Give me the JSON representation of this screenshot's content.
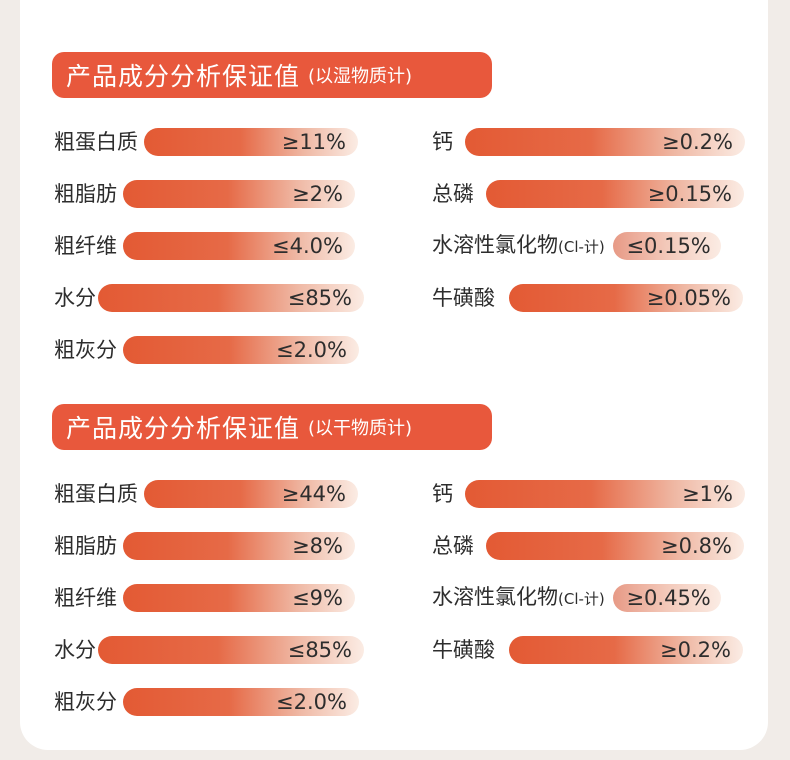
{
  "sections": [
    {
      "title": "产品成分分析保证值",
      "subtitle": "(以湿物质计)",
      "left": [
        {
          "label": "粗蛋白质",
          "value": "≥11%"
        },
        {
          "label": "粗脂肪",
          "value": "≥2%"
        },
        {
          "label": "粗纤维",
          "value": "≤4.0%"
        },
        {
          "label": "水分",
          "value": "≤85%"
        },
        {
          "label": "粗灰分",
          "value": "≤2.0%"
        }
      ],
      "right": [
        {
          "label": "钙",
          "value": "≥0.2%"
        },
        {
          "label": "总磷",
          "value": "≥0.15%"
        },
        {
          "label": "水溶性氯化物",
          "label_note": "(Cl-计)",
          "value": "≤0.15%"
        },
        {
          "label": "牛磺酸",
          "value": "≥0.05%"
        }
      ]
    },
    {
      "title": "产品成分分析保证值",
      "subtitle": "(以干物质计)",
      "left": [
        {
          "label": "粗蛋白质",
          "value": "≥44%"
        },
        {
          "label": "粗脂肪",
          "value": "≥8%"
        },
        {
          "label": "粗纤维",
          "value": "≤9%"
        },
        {
          "label": "水分",
          "value": "≤85%"
        },
        {
          "label": "粗灰分",
          "value": "≤2.0%"
        }
      ],
      "right": [
        {
          "label": "钙",
          "value": "≥1%"
        },
        {
          "label": "总磷",
          "value": "≥0.8%"
        },
        {
          "label": "水溶性氯化物",
          "label_note": "(Cl-计)",
          "value": "≥0.45%"
        },
        {
          "label": "牛磺酸",
          "value": "≥0.2%"
        }
      ]
    }
  ],
  "colors": {
    "accent": "#e8583c",
    "bar_start": "#e35a34",
    "bar_end": "#fbece4",
    "background": "#f1ece8",
    "card": "#ffffff"
  }
}
